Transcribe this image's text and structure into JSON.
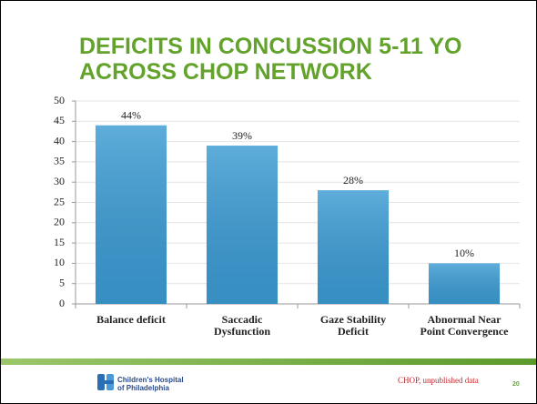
{
  "chart_data": {
    "type": "bar",
    "title": "DEFICITS IN CONCUSSION 5-11 YO ACROSS CHOP NETWORK",
    "categories": [
      "Balance deficit",
      "Saccadic Dysfunction",
      "Gaze Stability Deficit",
      "Abnormal Near Point Convergence"
    ],
    "values": [
      44,
      39,
      28,
      10
    ],
    "value_labels": [
      "44%",
      "39%",
      "28%",
      "10%"
    ],
    "color": "#3b9bd3",
    "ylim": [
      0,
      50
    ],
    "yticks": [
      0,
      5,
      10,
      15,
      20,
      25,
      30,
      35,
      40,
      45,
      50
    ],
    "grid": true
  },
  "footer": {
    "logo": [
      "Children's Hospital",
      "of Philadelphia"
    ],
    "source": "CHOP, unpublished data",
    "page_number": "20"
  }
}
